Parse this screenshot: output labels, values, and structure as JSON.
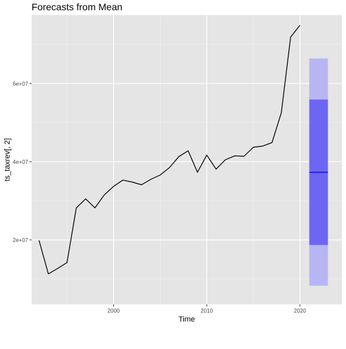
{
  "chart_data": {
    "type": "line",
    "title": "Forecasts from Mean",
    "xlabel": "Time",
    "ylabel": "ts_taxrev[, 2]",
    "xlim": [
      1991.2,
      2024.5
    ],
    "ylim": [
      3500000,
      77500000
    ],
    "x_ticks": [
      2000,
      2010,
      2020
    ],
    "y_ticks": [
      20000000,
      40000000,
      60000000
    ],
    "y_tick_labels": [
      "2e+07",
      "4e+07",
      "6e+07"
    ],
    "grid": true,
    "series": [
      {
        "x": [
          1992,
          1993,
          1994,
          1995,
          1996,
          1997,
          1998,
          1999,
          2000,
          2001,
          2002,
          2003,
          2004,
          2005,
          2006,
          2007,
          2008,
          2009,
          2010,
          2011,
          2012,
          2013,
          2014,
          2015,
          2016,
          2017,
          2018,
          2019,
          2020
        ],
        "values": [
          19900000,
          11300000,
          12700000,
          14200000,
          28200000,
          30500000,
          28200000,
          31500000,
          33700000,
          35300000,
          34800000,
          34100000,
          35500000,
          36600000,
          38500000,
          41300000,
          42800000,
          37300000,
          41700000,
          38100000,
          40500000,
          41500000,
          41400000,
          43700000,
          44000000,
          44900000,
          52500000,
          71900000,
          74900000
        ],
        "color": "#000000"
      }
    ],
    "forecast": {
      "x_start": 2021,
      "x_end": 2023,
      "mean": 37300000,
      "lo80": 18700000,
      "hi80": 55900000,
      "lo95": 8300000,
      "hi95": 66400000,
      "mean_color": "#0000ff",
      "band80_color": "#6d66f2",
      "band95_color": "#b8b5f5"
    },
    "panel_color": "#e5e5e5",
    "grid_major_color": "#ffffff",
    "grid_minor_color": "#f2f2f2"
  }
}
